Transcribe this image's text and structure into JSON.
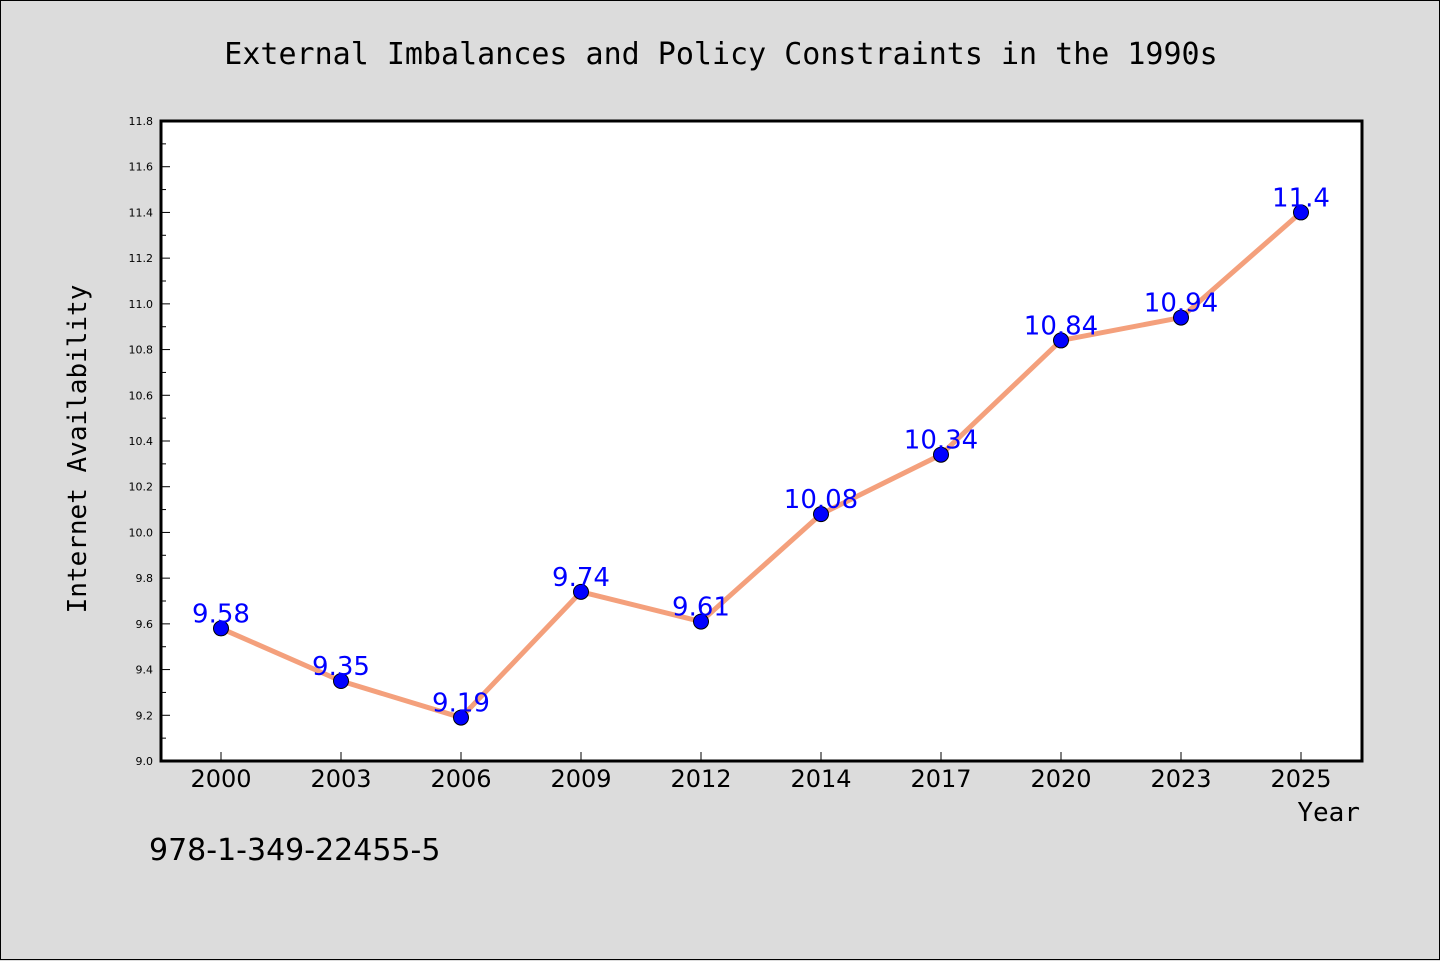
{
  "chart_data": {
    "type": "line",
    "title": "External Imbalances and Policy Constraints in the 1990s",
    "xlabel": "Year",
    "ylabel": "Internet Availability",
    "categories": [
      "2000",
      "2003",
      "2006",
      "2009",
      "2012",
      "2014",
      "2017",
      "2020",
      "2023",
      "2025"
    ],
    "series": [
      {
        "values": [
          9.58,
          9.35,
          9.19,
          9.74,
          9.61,
          10.08,
          10.34,
          10.84,
          10.94,
          11.4
        ],
        "labels": [
          "9.58",
          "9.35",
          "9.19",
          "9.74",
          "9.61",
          "10.08",
          "10.34",
          "10.84",
          "10.94",
          "11.4"
        ]
      }
    ],
    "ylim": [
      9.0,
      11.8
    ],
    "yticks": [
      "9.0",
      "9.2",
      "9.4",
      "9.6",
      "9.8",
      "10.0",
      "10.2",
      "10.4",
      "10.6",
      "10.8",
      "11.0",
      "11.2",
      "11.4",
      "11.6",
      "11.8"
    ],
    "grid": false,
    "colors": {
      "line": "#f4a07c",
      "marker": "#0000ff",
      "data_label": "#0000ff",
      "background": "#dcdcdc",
      "plot_background": "#ffffff"
    }
  },
  "annotation": "978-1-349-22455-5"
}
